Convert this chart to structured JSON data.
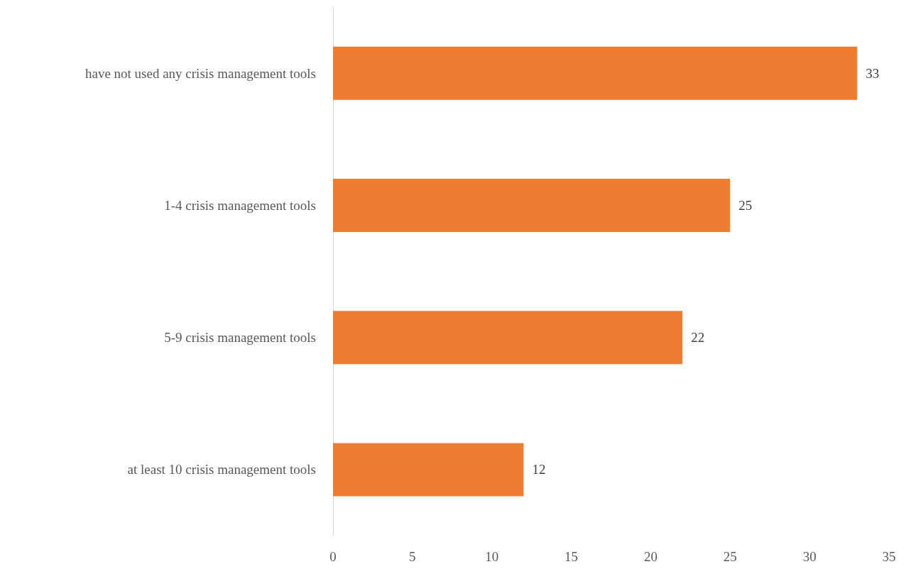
{
  "chart_data": {
    "type": "bar",
    "orientation": "horizontal",
    "categories": [
      "have not used any crisis management tools",
      "1-4 crisis management tools",
      "5-9 crisis management tools",
      "at least 10 crisis management tools"
    ],
    "values": [
      33,
      25,
      22,
      12
    ],
    "color": "#ed7d31",
    "xlim": [
      0,
      35
    ],
    "xticks": [
      0,
      5,
      10,
      15,
      20,
      25,
      30,
      35
    ],
    "grid": false,
    "data_labels": true
  }
}
